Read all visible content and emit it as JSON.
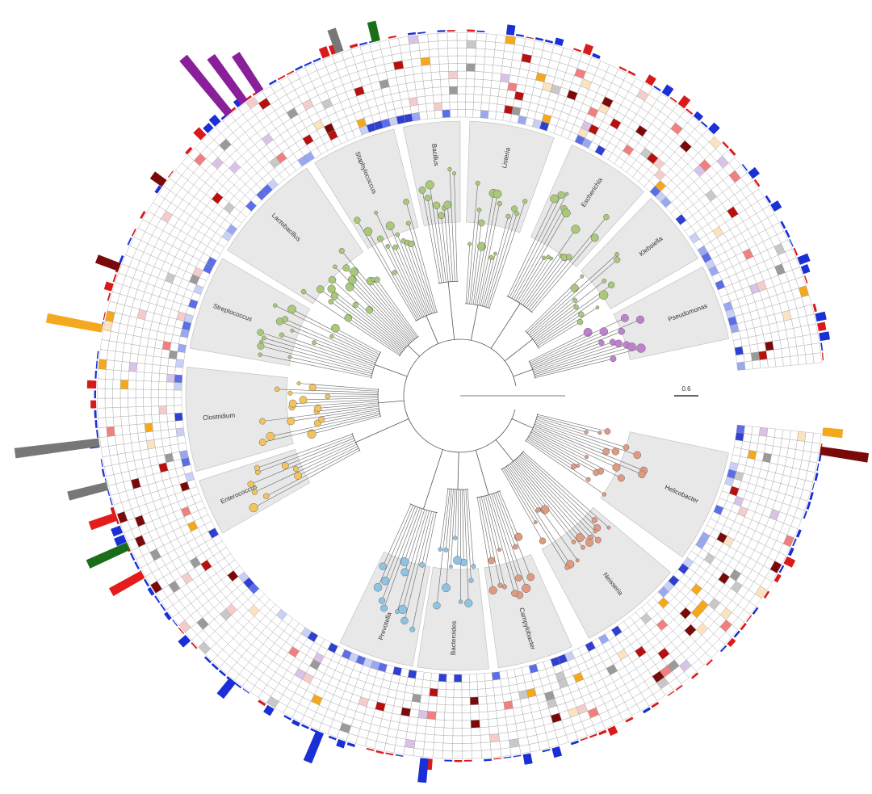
{
  "scale_bar": "0.6",
  "clades": [
    "Lactobacillus",
    "Staphylococcus",
    "Bacillus",
    "Listeria",
    "Streptococcus",
    "Enterococcus",
    "Clostridium",
    "Escherichia",
    "Klebsiella",
    "Pseudomonas",
    "Prevotella",
    "Bacteroides",
    "Campylobacter",
    "Neisseria",
    "Helicobacter"
  ]
}
